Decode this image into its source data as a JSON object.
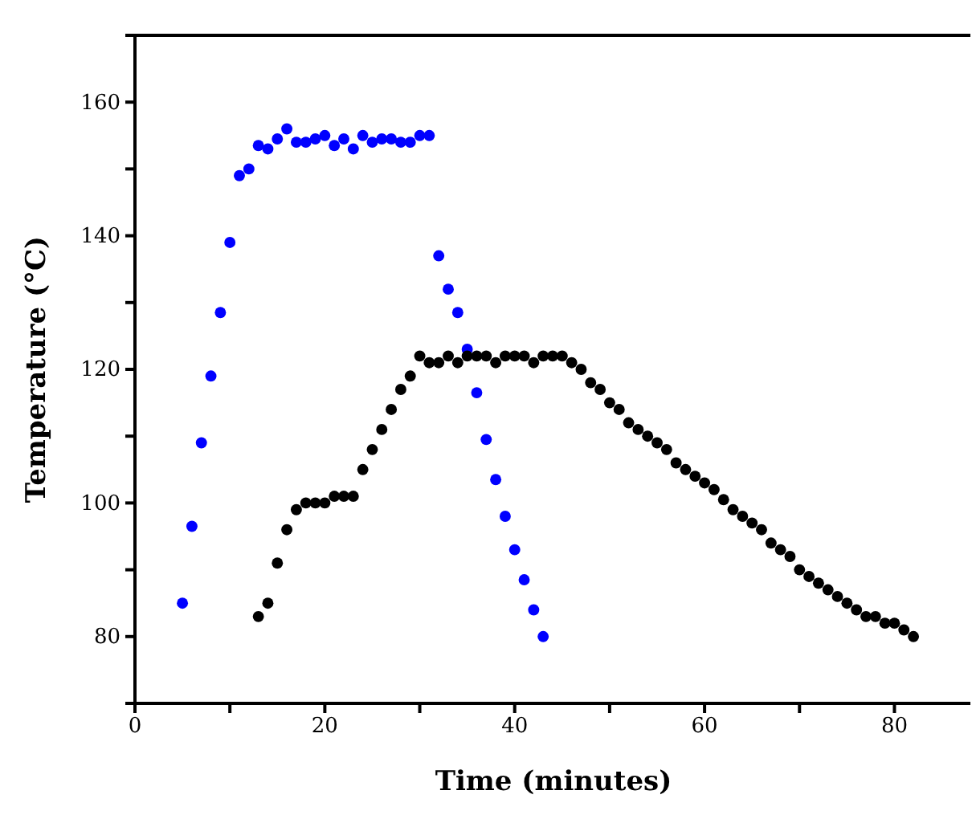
{
  "chart_data": {
    "type": "scatter",
    "xlabel": "Time (minutes)",
    "ylabel": "Temperature (°C)",
    "xlim": [
      0,
      88
    ],
    "ylim": [
      70,
      170
    ],
    "xticks": [
      0,
      {
        "value": 10,
        "label": null
      },
      20,
      {
        "value": 30,
        "label": null
      },
      40,
      {
        "value": 50,
        "label": null
      },
      60,
      {
        "value": 70,
        "label": null
      },
      80
    ],
    "yticks": [
      {
        "value": 70,
        "label": null
      },
      80,
      {
        "value": 90,
        "label": null
      },
      100,
      {
        "value": 110,
        "label": null
      },
      120,
      {
        "value": 130,
        "label": null
      },
      140,
      {
        "value": 150,
        "label": null
      },
      160,
      {
        "value": 170,
        "label": null
      }
    ],
    "marker": "circle",
    "series": [
      {
        "color": "#0000ff",
        "x": [
          5,
          6,
          7,
          8,
          9,
          10,
          11,
          12,
          13,
          14,
          15,
          16,
          17,
          18,
          19,
          20,
          21,
          22,
          23,
          24,
          25,
          26,
          27,
          28,
          29,
          30,
          31,
          32,
          33,
          34,
          35,
          36,
          37,
          38,
          39,
          40,
          41,
          42,
          43
        ],
        "values": [
          85,
          96.5,
          109,
          119,
          128.5,
          139,
          149,
          150,
          153.5,
          153,
          154.5,
          156,
          154,
          154,
          154.5,
          155,
          153.5,
          154.5,
          153,
          155,
          154,
          154.5,
          154.5,
          154,
          154,
          155,
          155,
          137,
          132,
          128.5,
          123,
          116.5,
          109.5,
          103.5,
          98,
          93,
          88.5,
          84,
          80
        ]
      },
      {
        "color": "#000000",
        "x": [
          13,
          14,
          15,
          16,
          17,
          18,
          19,
          20,
          21,
          22,
          23,
          24,
          25,
          26,
          27,
          28,
          29,
          30,
          31,
          32,
          33,
          34,
          35,
          36,
          37,
          38,
          39,
          40,
          41,
          42,
          43,
          44,
          45,
          46,
          47,
          48,
          49,
          50,
          51,
          52,
          53,
          54,
          55,
          56,
          57,
          58,
          59,
          60,
          61,
          62,
          63,
          64,
          65,
          66,
          67,
          68,
          69,
          70,
          71,
          72,
          73,
          74,
          75,
          76,
          77,
          78,
          79,
          80,
          81,
          82
        ],
        "values": [
          83,
          85,
          91,
          96,
          99,
          100,
          100,
          100,
          101,
          101,
          101,
          105,
          108,
          111,
          114,
          117,
          119,
          122,
          121,
          121,
          122,
          121,
          122,
          122,
          122,
          121,
          122,
          122,
          122,
          121,
          122,
          122,
          122,
          121,
          120,
          118,
          117,
          115,
          114,
          112,
          111,
          110,
          109,
          108,
          106,
          105,
          104,
          103,
          102,
          100.5,
          99,
          98,
          97,
          96,
          94,
          93,
          92,
          90,
          89,
          88,
          87,
          86,
          85,
          84,
          83,
          83,
          82,
          82,
          81,
          80
        ]
      }
    ]
  }
}
